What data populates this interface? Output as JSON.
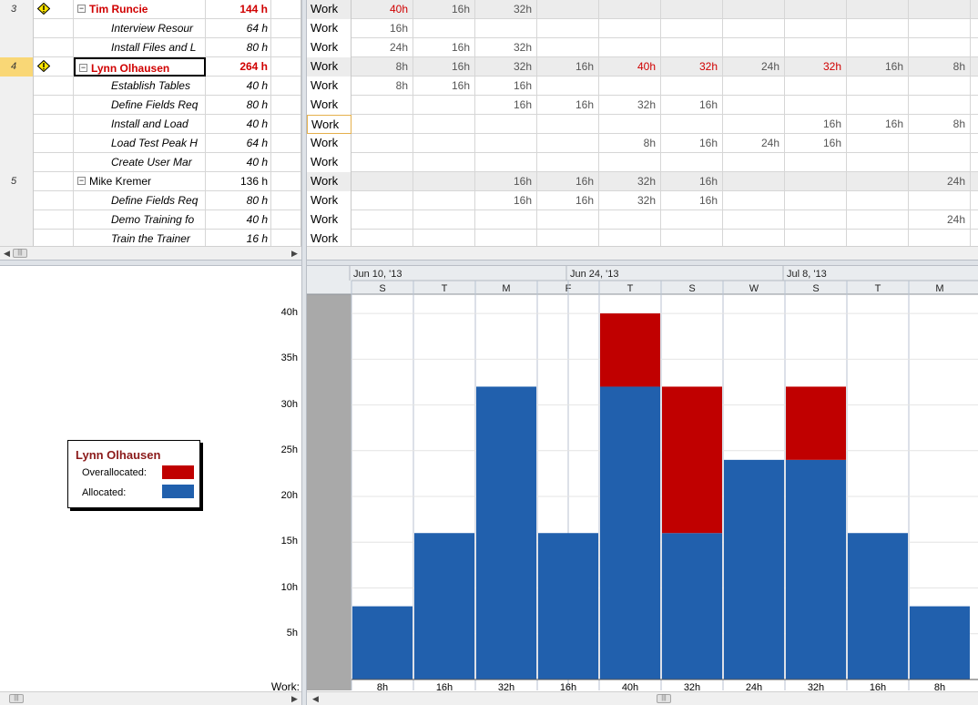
{
  "usage_table": {
    "rows": [
      {
        "id": "3",
        "name": "Tim Runcie",
        "work": "144 h",
        "kind": "res",
        "over": true,
        "warn": true,
        "collapse": true,
        "shaded": true,
        "label": "Work",
        "cells": [
          "40h",
          "16h",
          "32h",
          "",
          "",
          "",
          "",
          "",
          "",
          ""
        ],
        "red": [
          0
        ]
      },
      {
        "id": "",
        "name": "Interview Resour",
        "work": "64 h",
        "kind": "task",
        "label": "Work",
        "cells": [
          "16h",
          "",
          "",
          "",
          "",
          "",
          "",
          "",
          "",
          ""
        ]
      },
      {
        "id": "",
        "name": "Install Files and L",
        "work": "80 h",
        "kind": "task",
        "label": "Work",
        "cells": [
          "24h",
          "16h",
          "32h",
          "",
          "",
          "",
          "",
          "",
          "",
          ""
        ]
      },
      {
        "id": "4",
        "name": "Lynn Olhausen",
        "work": "264 h",
        "kind": "res",
        "over": true,
        "warn": true,
        "collapse": true,
        "selected": true,
        "shaded": true,
        "label": "Work",
        "cells": [
          "8h",
          "16h",
          "32h",
          "16h",
          "40h",
          "32h",
          "24h",
          "32h",
          "16h",
          "8h"
        ],
        "red": [
          4,
          5,
          7
        ]
      },
      {
        "id": "",
        "name": "Establish Tables",
        "work": "40 h",
        "kind": "task",
        "label": "Work",
        "cells": [
          "8h",
          "16h",
          "16h",
          "",
          "",
          "",
          "",
          "",
          "",
          ""
        ]
      },
      {
        "id": "",
        "name": "Define Fields Req",
        "work": "80 h",
        "kind": "task",
        "label": "Work",
        "cells": [
          "",
          "",
          "16h",
          "16h",
          "32h",
          "16h",
          "",
          "",
          "",
          ""
        ]
      },
      {
        "id": "",
        "name": "Install and Load",
        "work": "40 h",
        "kind": "task",
        "label": "Work",
        "active": true,
        "cells": [
          "",
          "",
          "",
          "",
          "",
          "",
          "",
          "16h",
          "16h",
          "8h"
        ]
      },
      {
        "id": "",
        "name": "Load Test Peak H",
        "work": "64 h",
        "kind": "task",
        "label": "Work",
        "cells": [
          "",
          "",
          "",
          "",
          "8h",
          "16h",
          "24h",
          "16h",
          "",
          ""
        ]
      },
      {
        "id": "",
        "name": "Create User Mar",
        "work": "40 h",
        "kind": "task",
        "label": "Work",
        "cells": [
          "",
          "",
          "",
          "",
          "",
          "",
          "",
          "",
          "",
          ""
        ]
      },
      {
        "id": "5",
        "name": "Mike Kremer",
        "work": "136 h",
        "kind": "res",
        "normal": true,
        "collapse": true,
        "shaded": true,
        "label": "Work",
        "cells": [
          "",
          "",
          "16h",
          "16h",
          "32h",
          "16h",
          "",
          "",
          "",
          "24h"
        ]
      },
      {
        "id": "",
        "name": "Define Fields Req",
        "work": "80 h",
        "kind": "task",
        "label": "Work",
        "cells": [
          "",
          "",
          "16h",
          "16h",
          "32h",
          "16h",
          "",
          "",
          "",
          ""
        ]
      },
      {
        "id": "",
        "name": "Demo Training fo",
        "work": "40 h",
        "kind": "task",
        "label": "Work",
        "cells": [
          "",
          "",
          "",
          "",
          "",
          "",
          "",
          "",
          "",
          "24h"
        ]
      },
      {
        "id": "",
        "name": "Train the Trainer",
        "work": "16 h",
        "kind": "task",
        "label": "Work",
        "cells": [
          "",
          "",
          "",
          "",
          "",
          "",
          "",
          "",
          "",
          ""
        ]
      }
    ]
  },
  "legend": {
    "title": "Lynn Olhausen",
    "overallocated_label": "Overallocated:",
    "allocated_label": "Allocated:"
  },
  "colors": {
    "overallocated": "#c00000",
    "allocated": "#2160ad",
    "gray_column": "#a9a9a9"
  },
  "timescale": {
    "major": [
      "Jun 10, '13",
      "Jun 24, '13",
      "Jul 8, '13"
    ],
    "minor": [
      "S",
      "T",
      "M",
      "F",
      "T",
      "S",
      "W",
      "S",
      "T",
      "M"
    ]
  },
  "chart_data": {
    "type": "bar",
    "categories": [
      "S",
      "T",
      "M",
      "F",
      "T",
      "S",
      "W",
      "S",
      "T",
      "M"
    ],
    "series": [
      {
        "name": "Allocated",
        "values": [
          8,
          16,
          32,
          16,
          32,
          16,
          24,
          24,
          16,
          8
        ]
      },
      {
        "name": "Overallocated",
        "values": [
          0,
          0,
          0,
          0,
          8,
          16,
          0,
          8,
          0,
          0
        ]
      }
    ],
    "ylim": [
      0,
      42
    ],
    "yticks": [
      "5h",
      "10h",
      "15h",
      "20h",
      "25h",
      "30h",
      "35h",
      "40h"
    ],
    "ylabel": "Work:",
    "totals": [
      "8h",
      "16h",
      "32h",
      "16h",
      "40h",
      "32h",
      "24h",
      "32h",
      "16h",
      "8h"
    ]
  }
}
